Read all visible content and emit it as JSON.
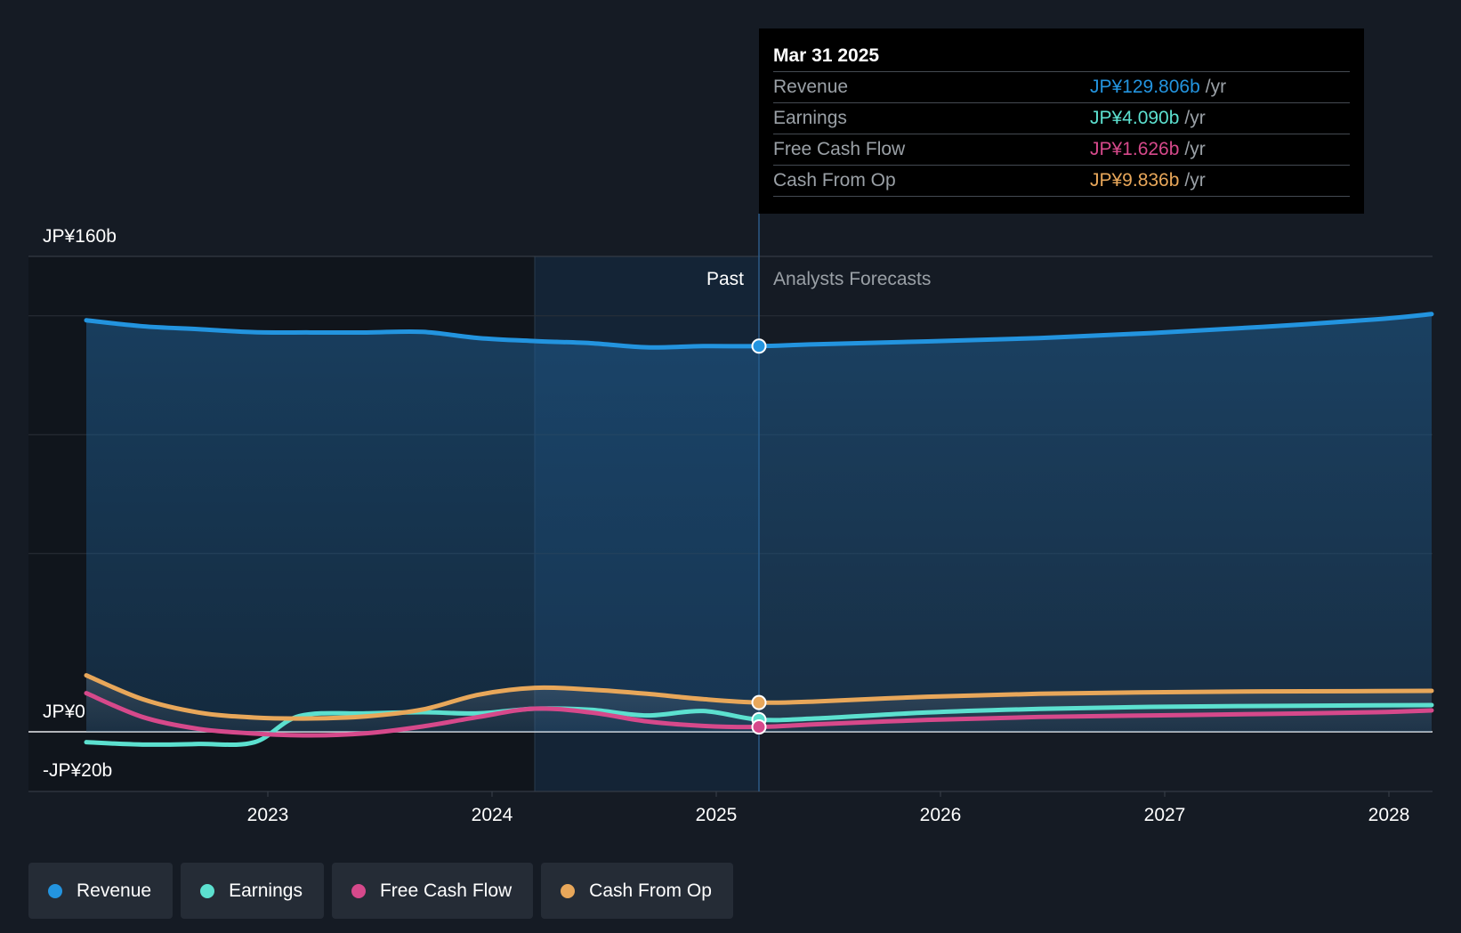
{
  "chart_data": {
    "type": "line",
    "currency_prefix": "JP¥",
    "x_range": [
      2022.2,
      2028.25
    ],
    "ylim": [
      -20,
      160
    ],
    "y_tick_labels": [
      {
        "value": 160,
        "label": "JP¥160b"
      },
      {
        "value": 0,
        "label": "JP¥0"
      },
      {
        "value": -20,
        "label": "-JP¥20b"
      }
    ],
    "x_ticks": [
      {
        "value": 2023,
        "label": "2023"
      },
      {
        "value": 2024,
        "label": "2024"
      },
      {
        "value": 2025,
        "label": "2025"
      },
      {
        "value": 2026,
        "label": "2026"
      },
      {
        "value": 2027,
        "label": "2027"
      },
      {
        "value": 2028,
        "label": "2028"
      }
    ],
    "past_label": "Past",
    "forecast_label": "Analysts Forecasts",
    "divider_x": 2025.25,
    "highlight_start_x": 2024.25,
    "series": [
      {
        "name": "Revenue",
        "color": "#2394df",
        "filled": true,
        "points": [
          [
            2022.25,
            138.5
          ],
          [
            2022.5,
            136.5
          ],
          [
            2022.75,
            135.5
          ],
          [
            2023.0,
            134.5
          ],
          [
            2023.25,
            134.4
          ],
          [
            2023.5,
            134.4
          ],
          [
            2023.75,
            134.6
          ],
          [
            2024.0,
            132.5
          ],
          [
            2024.25,
            131.5
          ],
          [
            2024.5,
            130.8
          ],
          [
            2024.75,
            129.4
          ],
          [
            2025.0,
            129.8
          ],
          [
            2025.25,
            129.8
          ],
          [
            2025.5,
            130.4
          ],
          [
            2026.0,
            131.4
          ],
          [
            2026.5,
            132.5
          ],
          [
            2027.0,
            134.2
          ],
          [
            2027.5,
            136.3
          ],
          [
            2028.0,
            138.8
          ],
          [
            2028.25,
            140.6
          ]
        ]
      },
      {
        "name": "Earnings",
        "color": "#5ce0cf",
        "filled": false,
        "points": [
          [
            2022.25,
            -3.5
          ],
          [
            2022.5,
            -4.3
          ],
          [
            2022.75,
            -4.1
          ],
          [
            2023.0,
            -3.5
          ],
          [
            2023.2,
            5.3
          ],
          [
            2023.5,
            6.2
          ],
          [
            2023.75,
            6.6
          ],
          [
            2024.0,
            6.2
          ],
          [
            2024.25,
            7.8
          ],
          [
            2024.5,
            7.4
          ],
          [
            2024.75,
            5.5
          ],
          [
            2025.0,
            7.0
          ],
          [
            2025.25,
            4.09
          ],
          [
            2025.5,
            4.5
          ],
          [
            2026.0,
            6.5
          ],
          [
            2026.5,
            7.7
          ],
          [
            2027.0,
            8.4
          ],
          [
            2027.5,
            8.7
          ],
          [
            2028.0,
            8.9
          ],
          [
            2028.25,
            9.0
          ]
        ]
      },
      {
        "name": "Free Cash Flow",
        "color": "#d6498b",
        "filled": false,
        "points": [
          [
            2022.25,
            13.0
          ],
          [
            2022.5,
            5.0
          ],
          [
            2022.75,
            1.0
          ],
          [
            2023.0,
            -0.6
          ],
          [
            2023.25,
            -1.2
          ],
          [
            2023.5,
            -0.5
          ],
          [
            2023.75,
            1.8
          ],
          [
            2024.0,
            5.0
          ],
          [
            2024.25,
            7.8
          ],
          [
            2024.5,
            6.5
          ],
          [
            2024.75,
            3.5
          ],
          [
            2025.0,
            2.0
          ],
          [
            2025.25,
            1.63
          ],
          [
            2025.5,
            2.5
          ],
          [
            2026.0,
            4.0
          ],
          [
            2026.5,
            5.0
          ],
          [
            2027.0,
            5.5
          ],
          [
            2027.5,
            6.0
          ],
          [
            2028.0,
            6.6
          ],
          [
            2028.25,
            7.2
          ]
        ]
      },
      {
        "name": "Cash From Op",
        "color": "#e8a75a",
        "filled": false,
        "points": [
          [
            2022.25,
            19.0
          ],
          [
            2022.5,
            11.0
          ],
          [
            2022.75,
            6.5
          ],
          [
            2023.0,
            4.8
          ],
          [
            2023.25,
            4.5
          ],
          [
            2023.5,
            5.2
          ],
          [
            2023.75,
            7.5
          ],
          [
            2024.0,
            12.5
          ],
          [
            2024.25,
            14.8
          ],
          [
            2024.5,
            14.2
          ],
          [
            2024.75,
            12.8
          ],
          [
            2025.0,
            11.0
          ],
          [
            2025.25,
            9.84
          ],
          [
            2025.5,
            10.2
          ],
          [
            2026.0,
            11.8
          ],
          [
            2026.5,
            12.8
          ],
          [
            2027.0,
            13.3
          ],
          [
            2027.5,
            13.6
          ],
          [
            2028.0,
            13.7
          ],
          [
            2028.25,
            13.8
          ]
        ]
      }
    ]
  },
  "tooltip": {
    "date": "Mar 31 2025",
    "unit": "/yr",
    "rows": [
      {
        "label": "Revenue",
        "value": "JP¥129.806b",
        "color": "#2394df"
      },
      {
        "label": "Earnings",
        "value": "JP¥4.090b",
        "color": "#5ce0cf"
      },
      {
        "label": "Free Cash Flow",
        "value": "JP¥1.626b",
        "color": "#d6498b"
      },
      {
        "label": "Cash From Op",
        "value": "JP¥9.836b",
        "color": "#e8a75a"
      }
    ]
  },
  "legend": [
    {
      "label": "Revenue",
      "color": "#2394df"
    },
    {
      "label": "Earnings",
      "color": "#5ce0cf"
    },
    {
      "label": "Free Cash Flow",
      "color": "#d6498b"
    },
    {
      "label": "Cash From Op",
      "color": "#e8a75a"
    }
  ]
}
